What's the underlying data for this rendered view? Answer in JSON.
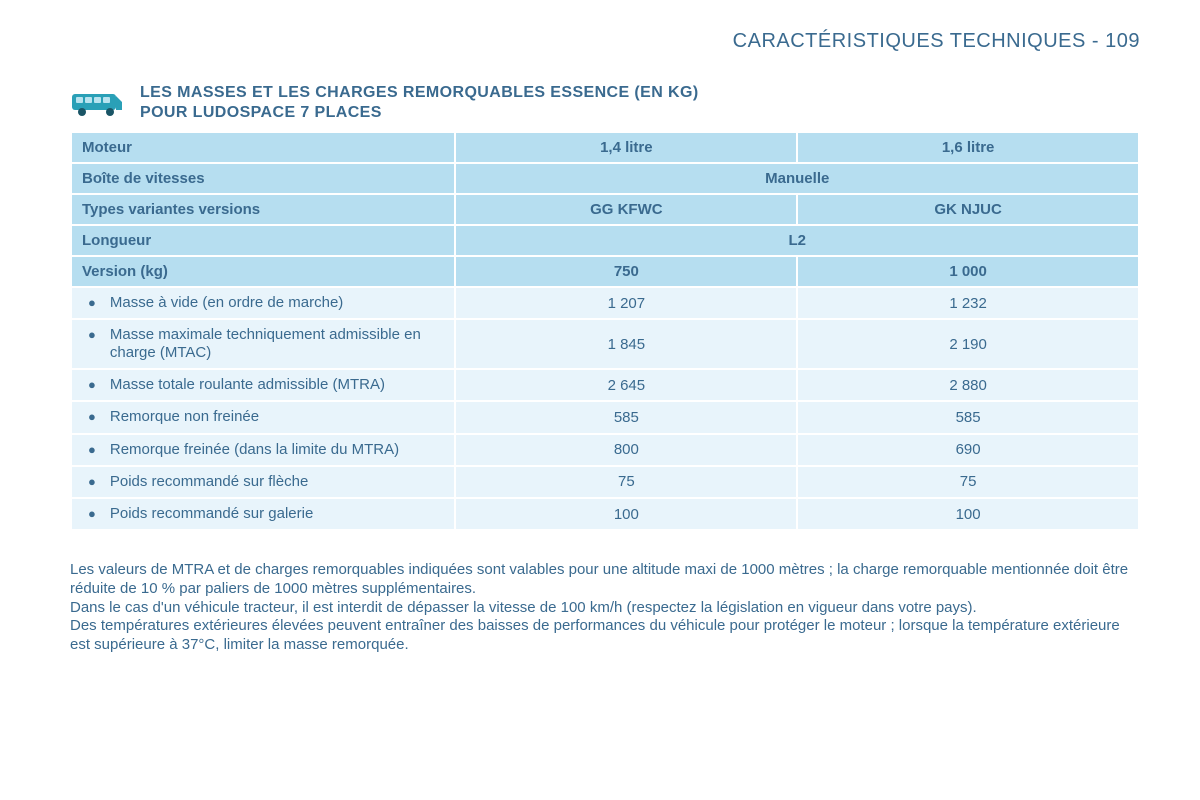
{
  "page_header": "CARACTÉRISTIQUES TECHNIQUES - 109",
  "title_line1": "LES MASSES ET LES CHARGES REMORQUABLES ESSENCE (EN KG)",
  "title_line2": "POUR LUDOSPACE 7 PLACES",
  "icon_body_color": "#2aa0b7",
  "icon_window_color": "#b9e3ef",
  "icon_wheel_color": "#1a5566",
  "colors": {
    "header_row_bg": "#b6def0",
    "data_row_bg": "#e8f4fb",
    "border": "#ffffff",
    "text": "#3a6a8f",
    "page_bg": "#ffffff"
  },
  "table": {
    "header_rows": [
      {
        "label": "Moteur",
        "cells": [
          "1,4 litre",
          "1,6 litre"
        ],
        "span": [
          1,
          1
        ]
      },
      {
        "label": "Boîte de vitesses",
        "cells": [
          "Manuelle"
        ],
        "span": [
          2
        ]
      },
      {
        "label": "Types variantes versions",
        "cells": [
          "GG KFWC",
          "GK NJUC"
        ],
        "span": [
          1,
          1
        ]
      },
      {
        "label": "Longueur",
        "cells": [
          "L2"
        ],
        "span": [
          2
        ]
      },
      {
        "label": "Version (kg)",
        "cells": [
          "750",
          "1 000"
        ],
        "span": [
          1,
          1
        ]
      }
    ],
    "data_rows": [
      {
        "label": "Masse à vide (en ordre de marche)",
        "vals": [
          "1 207",
          "1 232"
        ]
      },
      {
        "label": "Masse maximale techniquement admissible en charge (MTAC)",
        "vals": [
          "1 845",
          "2 190"
        ]
      },
      {
        "label": "Masse totale roulante admissible (MTRA)",
        "vals": [
          "2 645",
          "2 880"
        ]
      },
      {
        "label": "Remorque non freinée",
        "vals": [
          "585",
          "585"
        ]
      },
      {
        "label": "Remorque freinée (dans la limite du MTRA)",
        "vals": [
          "800",
          "690"
        ]
      },
      {
        "label": "Poids recommandé sur flèche",
        "vals": [
          "75",
          "75"
        ]
      },
      {
        "label": "Poids recommandé sur galerie",
        "vals": [
          "100",
          "100"
        ]
      }
    ]
  },
  "notes": [
    "Les valeurs de MTRA et de charges remorquables indiquées sont valables pour une altitude maxi de 1000 mètres ; la charge remorquable mentionnée doit être réduite de 10 % par paliers de 1000 mètres supplémentaires.",
    "Dans le cas d'un véhicule tracteur, il est interdit de dépasser la vitesse de 100 km/h (respectez la législation en vigueur dans votre pays).",
    "Des températures extérieures élevées peuvent entraîner des baisses de performances du véhicule pour protéger le moteur ; lorsque la température extérieure est supérieure à 37°C, limiter la masse remorquée."
  ]
}
